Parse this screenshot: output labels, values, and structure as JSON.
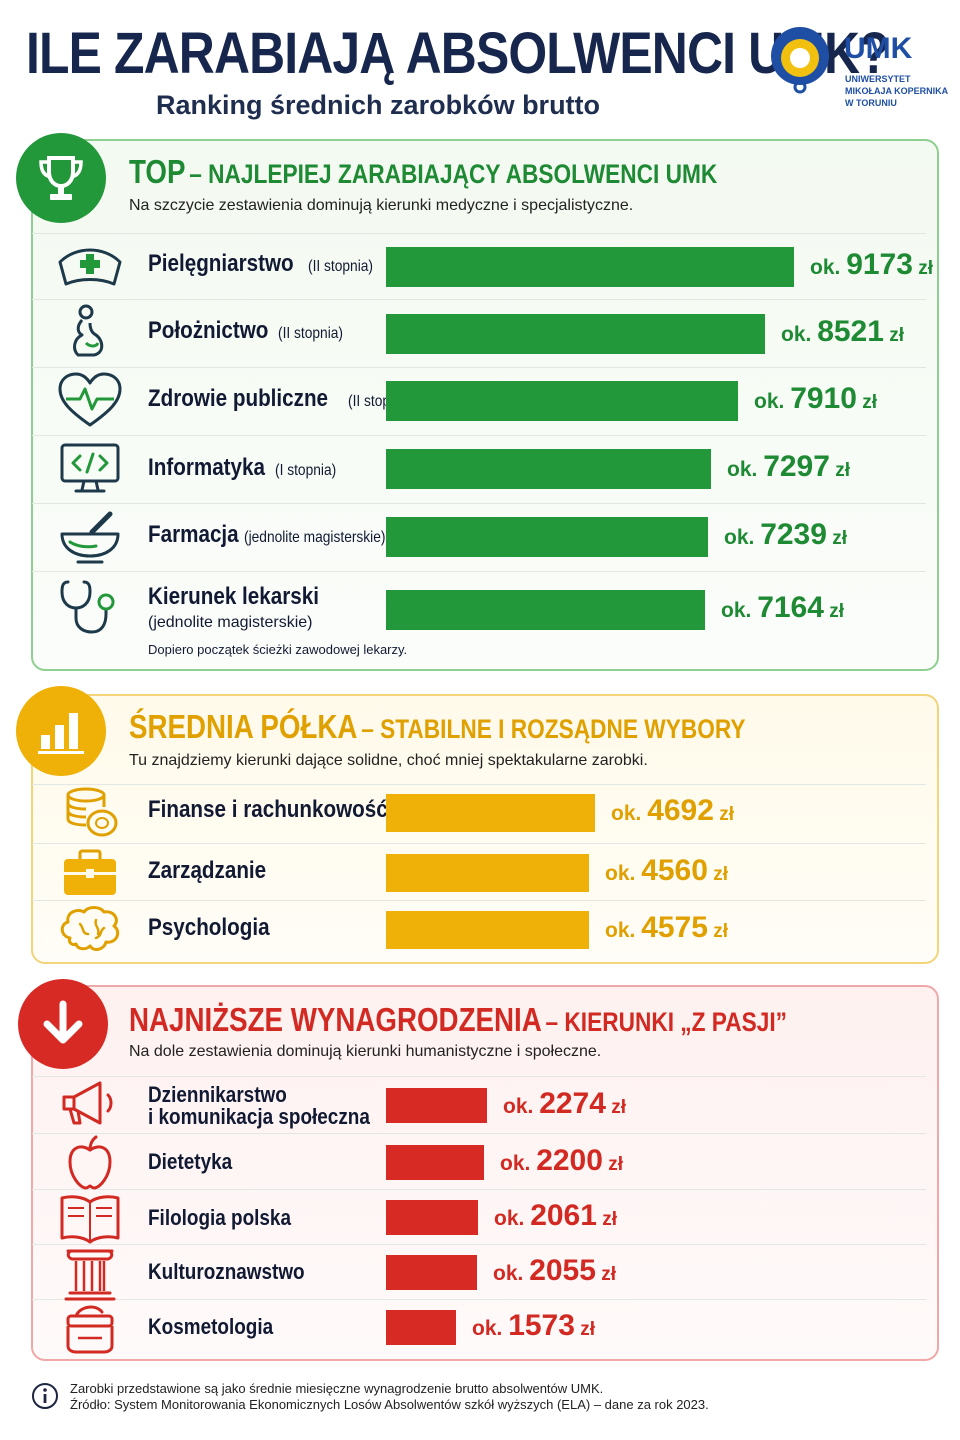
{
  "header": {
    "title": "ILE ZARABIAJĄ ABSOLWENCI UMK?",
    "subtitle": "Ranking średnich zarobków brutto",
    "logo": {
      "name": "UMK",
      "line1": "UNIWERSYTET",
      "line2": "MIKOŁAJA KOPERNIKA",
      "line3": "W TORUNIU"
    }
  },
  "colors": {
    "top": "#22983a",
    "mid": "#efb007",
    "low": "#d72a24",
    "top_value": "#1f8a34",
    "mid_value": "#e0a000",
    "low_value": "#d22a22"
  },
  "sections": {
    "top": {
      "title_main": "TOP",
      "title_rest": "– NAJLEPIEJ ZARABIAJĄCY ABSOLWENCI UMK",
      "description": "Na szczycie zestawienia dominują kierunki medyczne i specjalistyczne.",
      "footnote": "Dopiero początek ścieżki zawodowej lekarzy.",
      "items": [
        {
          "name": "Pielęgniarstwo",
          "note": "(II stopnia)",
          "icon": "nurse-cap-icon",
          "value": 9173,
          "prefix": "ok.",
          "value_text": "9173",
          "unit": "zł"
        },
        {
          "name": "Położnictwo",
          "note": "(II stopnia)",
          "icon": "pregnant-woman-icon",
          "value": 8521,
          "prefix": "ok.",
          "value_text": "8521",
          "unit": "zł"
        },
        {
          "name": "Zdrowie publiczne",
          "note": "(II stopnia)",
          "icon": "heart-pulse-icon",
          "value": 7910,
          "prefix": "ok.",
          "value_text": "7910",
          "unit": "zł"
        },
        {
          "name": "Informatyka",
          "note": "(I stopnia)",
          "icon": "monitor-code-icon",
          "value": 7297,
          "prefix": "ok.",
          "value_text": "7297",
          "unit": "zł"
        },
        {
          "name": "Farmacja",
          "note": "(jednolite magisterskie)",
          "icon": "mortar-pestle-icon",
          "value": 7239,
          "prefix": "ok.",
          "value_text": "7239",
          "unit": "zł"
        },
        {
          "name": "Kierunek lekarski",
          "note": "(jednolite magisterskie)",
          "icon": "stethoscope-icon",
          "value": 7164,
          "prefix": "ok.",
          "value_text": "7164",
          "unit": "zł"
        }
      ]
    },
    "mid": {
      "title_main": "ŚREDNIA PÓŁKA",
      "title_rest": "– STABILNE I ROZSĄDNE WYBORY",
      "description": "Tu znajdziemy kierunki dające solidne, choć mniej spektakularne zarobki.",
      "items": [
        {
          "name": "Finanse i rachunkowość",
          "icon": "coins-icon",
          "value": 4692,
          "prefix": "ok.",
          "value_text": "4692",
          "unit": "zł"
        },
        {
          "name": "Zarządzanie",
          "icon": "briefcase-icon",
          "value": 4560,
          "prefix": "ok.",
          "value_text": "4560",
          "unit": "zł"
        },
        {
          "name": "Psychologia",
          "icon": "brain-icon",
          "value": 4575,
          "prefix": "ok.",
          "value_text": "4575",
          "unit": "zł"
        }
      ]
    },
    "low": {
      "title_main": "NAJNIŻSZE WYNAGRODZENIA",
      "title_rest": "– KIERUNKI „Z PASJI”",
      "description": "Na dole zestawienia dominują kierunki humanistyczne i społeczne.",
      "items": [
        {
          "name": "Dziennikarstwo",
          "name2": "i komunikacja społeczna",
          "icon": "megaphone-icon",
          "value": 2274,
          "prefix": "ok.",
          "value_text": "2274",
          "unit": "zł"
        },
        {
          "name": "Dietetyka",
          "icon": "apple-icon",
          "value": 2200,
          "prefix": "ok.",
          "value_text": "2200",
          "unit": "zł"
        },
        {
          "name": "Filologia polska",
          "icon": "open-book-icon",
          "value": 2061,
          "prefix": "ok.",
          "value_text": "2061",
          "unit": "zł"
        },
        {
          "name": "Kulturoznawstwo",
          "icon": "column-icon",
          "value": 2055,
          "prefix": "ok.",
          "value_text": "2055",
          "unit": "zł"
        },
        {
          "name": "Kosmetologia",
          "icon": "cream-jar-icon",
          "value": 1573,
          "prefix": "ok.",
          "value_text": "1573",
          "unit": "zł"
        }
      ]
    }
  },
  "footer": {
    "line1": "Zarobki przedstawione są jako średnie miesięczne wynagrodzenie brutto absolwentów UMK.",
    "line2": "Źródło: System Monitorowania Ekonomicznych Losów Absolwentów szkół wyższych (ELA) – dane za rok 2023."
  },
  "chart_data": {
    "type": "bar",
    "title": "ILE ZARABIAJĄ ABSOLWENCI UMK?",
    "subtitle": "Ranking średnich zarobków brutto",
    "orientation": "horizontal",
    "unit": "zł",
    "categories": [
      "Pielęgniarstwo",
      "Położnictwo",
      "Zdrowie publiczne",
      "Informatyka",
      "Farmacja",
      "Kierunek lekarski",
      "Finanse i rachunkowość",
      "Zarządzanie",
      "Psychologia",
      "Dziennikarstwo i komunikacja społeczna",
      "Dietetyka",
      "Filologia polska",
      "Kulturoznawstwo",
      "Kosmetologia"
    ],
    "values": [
      9173,
      8521,
      7910,
      7297,
      7239,
      7164,
      4692,
      4560,
      4575,
      2274,
      2200,
      2061,
      2055,
      1573
    ],
    "groups": [
      "TOP",
      "TOP",
      "TOP",
      "TOP",
      "TOP",
      "TOP",
      "ŚREDNIA PÓŁKA",
      "ŚREDNIA PÓŁKA",
      "ŚREDNIA PÓŁKA",
      "NAJNIŻSZE WYNAGRODZENIA",
      "NAJNIŻSZE WYNAGRODZENIA",
      "NAJNIŻSZE WYNAGRODZENIA",
      "NAJNIŻSZE WYNAGRODZENIA",
      "NAJNIŻSZE WYNAGRODZENIA"
    ],
    "xlim": [
      0,
      9173
    ],
    "grid": false
  }
}
